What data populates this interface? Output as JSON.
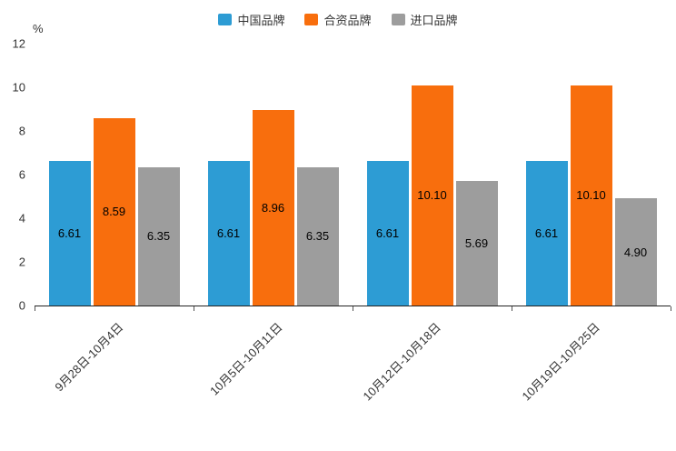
{
  "chart_data": {
    "type": "bar",
    "title": "",
    "ylabel": "%",
    "xlabel": "",
    "ylim": [
      0,
      12
    ],
    "yticks": [
      0,
      2,
      4,
      6,
      8,
      10,
      12
    ],
    "grid": false,
    "legend_position": "top",
    "x_label_rotation": -45,
    "categories": [
      "9月28日-10月4日",
      "10月5日-10月11日",
      "10月12日-10月18日",
      "10月19日-10月25日"
    ],
    "series": [
      {
        "name": "中国品牌",
        "color": "#2D9CD4",
        "values": [
          6.61,
          6.61,
          6.61,
          6.61
        ]
      },
      {
        "name": "合资品牌",
        "color": "#F86E0D",
        "values": [
          8.59,
          8.96,
          10.1,
          10.1
        ]
      },
      {
        "name": "进口品牌",
        "color": "#9D9D9D",
        "values": [
          6.35,
          6.35,
          5.69,
          4.9
        ]
      }
    ],
    "value_label_decimals": 2
  }
}
